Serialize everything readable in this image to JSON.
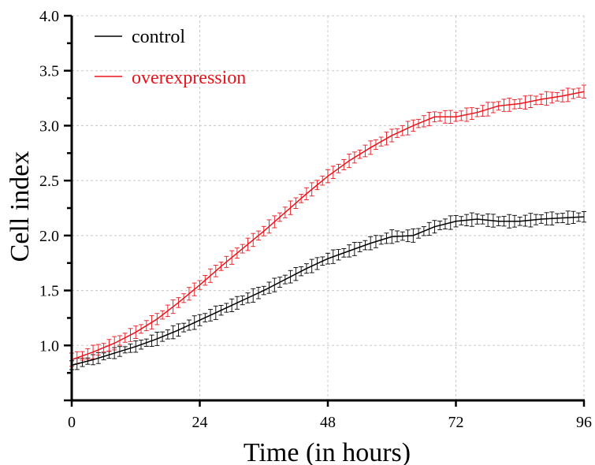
{
  "chart_data": {
    "type": "line",
    "xlabel": "Time (in hours)",
    "ylabel": "Cell index",
    "xlim": [
      0,
      96
    ],
    "ylim": [
      0.5,
      4.0
    ],
    "x_ticks": [
      0,
      24,
      48,
      72,
      96
    ],
    "x_tick_labels": [
      "0",
      "24",
      "48",
      "72",
      "96"
    ],
    "y_ticks": [
      1.0,
      1.5,
      2.0,
      2.5,
      3.0,
      3.5,
      4.0
    ],
    "y_tick_labels": [
      "1.0",
      "1.5",
      "2.0",
      "2.5",
      "3.0",
      "3.5",
      "4.0"
    ],
    "grid": true,
    "legend_position": "top-left",
    "error_bars": true,
    "series": [
      {
        "name": "control",
        "color": "#000000",
        "x": [
          0,
          4,
          8,
          12,
          16,
          20,
          24,
          28,
          32,
          36,
          40,
          44,
          48,
          52,
          56,
          60,
          64,
          68,
          72,
          76,
          80,
          84,
          88,
          92,
          96
        ],
        "y": [
          0.82,
          0.87,
          0.93,
          0.99,
          1.06,
          1.14,
          1.23,
          1.32,
          1.41,
          1.5,
          1.6,
          1.7,
          1.79,
          1.86,
          1.93,
          1.99,
          2.0,
          2.08,
          2.13,
          2.15,
          2.13,
          2.13,
          2.15,
          2.16,
          2.17
        ],
        "error": [
          0.04,
          0.04,
          0.04,
          0.04,
          0.05,
          0.05,
          0.05,
          0.05,
          0.05,
          0.05,
          0.05,
          0.05,
          0.05,
          0.05,
          0.05,
          0.05,
          0.05,
          0.05,
          0.05,
          0.05,
          0.05,
          0.05,
          0.05,
          0.05,
          0.05
        ]
      },
      {
        "name": "overexpression",
        "color": "#e8141c",
        "x": [
          0,
          4,
          8,
          12,
          16,
          20,
          24,
          28,
          32,
          36,
          40,
          44,
          48,
          52,
          56,
          60,
          64,
          68,
          72,
          76,
          80,
          84,
          88,
          92,
          96
        ],
        "y": [
          0.87,
          0.94,
          1.02,
          1.12,
          1.24,
          1.39,
          1.55,
          1.72,
          1.88,
          2.04,
          2.21,
          2.38,
          2.54,
          2.68,
          2.8,
          2.91,
          3.0,
          3.08,
          3.08,
          3.12,
          3.18,
          3.2,
          3.24,
          3.27,
          3.31
        ]
      }
    ]
  }
}
